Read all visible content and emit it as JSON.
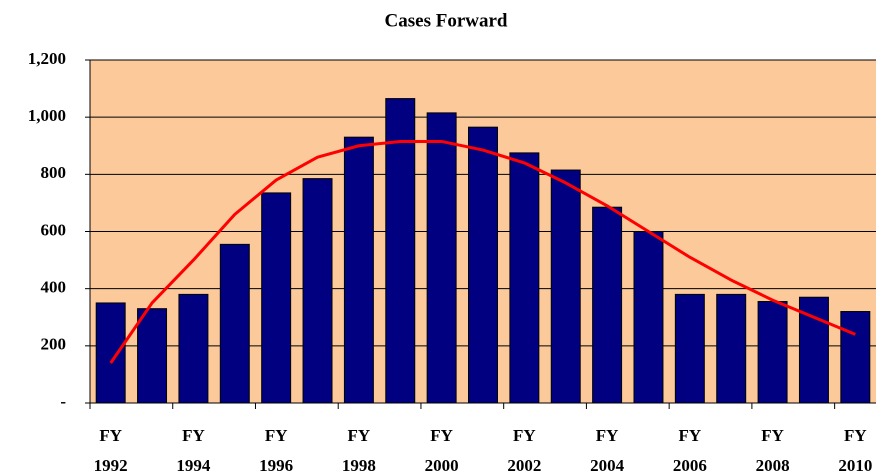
{
  "chart_data": {
    "type": "bar",
    "title": "Cases Forward",
    "categories": [
      "FY 1992",
      null,
      "FY 1994",
      null,
      "FY 1996",
      null,
      "FY 1998",
      null,
      "FY 2000",
      null,
      "FY 2002",
      null,
      "FY 2004",
      null,
      "FY 2006",
      null,
      "FY 2008",
      null,
      "FY 2010"
    ],
    "series": [
      {
        "type": "bar",
        "color": "#000080",
        "values": [
          350,
          330,
          380,
          555,
          735,
          785,
          930,
          1065,
          1015,
          965,
          875,
          815,
          685,
          600,
          380,
          380,
          355,
          370,
          320
        ]
      },
      {
        "type": "line",
        "color": "#ff0000",
        "values": [
          140,
          350,
          500,
          660,
          780,
          860,
          900,
          915,
          915,
          885,
          840,
          770,
          690,
          600,
          510,
          430,
          360,
          300,
          240
        ]
      }
    ],
    "ylim": [
      0,
      1200
    ],
    "yticks": [
      {
        "value": 0,
        "label": "-"
      },
      200,
      400,
      600,
      800,
      {
        "value": 1000,
        "label": "1,000"
      },
      {
        "value": 1200,
        "label": "1,200"
      }
    ],
    "grid": true,
    "plot_background": "#fcc99a"
  }
}
